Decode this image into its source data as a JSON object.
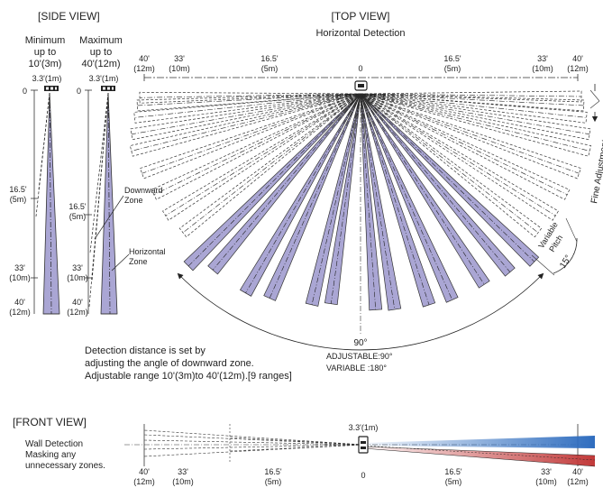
{
  "side_view": {
    "title": "[SIDE VIEW]",
    "minimum": {
      "line1": "Minimum",
      "line2": "up to",
      "line3": "10'(3m)",
      "height": "3.3'(1m)"
    },
    "maximum": {
      "line1": "Maximum",
      "line2": "up to",
      "line3": "40'(12m)",
      "height": "3.3'(1m)"
    },
    "zero": "0",
    "d16_ft": "16.5'",
    "d16_m": "(5m)",
    "d33_ft": "33'",
    "d33_m": "(10m)",
    "d40_ft": "40'",
    "d40_m": "(12m)",
    "downward_zone": [
      "Downward",
      "Zone"
    ],
    "horizontal_zone": [
      "Horizontal",
      "Zone"
    ]
  },
  "top_view": {
    "title": "[TOP VIEW]",
    "subtitle": "Horizontal Detection",
    "scale": [
      {
        "ft": "40'",
        "m": "(12m)"
      },
      {
        "ft": "33'",
        "m": "(10m)"
      },
      {
        "ft": "16.5'",
        "m": "(5m)"
      },
      {
        "ft": "0",
        "m": ""
      },
      {
        "ft": "16.5'",
        "m": "(5m)"
      },
      {
        "ft": "33'",
        "m": "(10m)"
      },
      {
        "ft": "40'",
        "m": "(12m)"
      }
    ],
    "fine_adjustment": "Fine Adjustment",
    "variable_pitch": [
      "Variable",
      "Pitch"
    ],
    "pitch_angle": "15°",
    "coverage_angle": "90°",
    "adjustable": "ADJUSTABLE:90°",
    "variable": "VARIABLE :180°"
  },
  "note": {
    "line1": "Detection distance is set by",
    "line2": "adjusting the angle of downward zone.",
    "line3": "Adjustable range 10'(3m)to 40'(12m).[9 ranges]"
  },
  "front_view": {
    "title": "[FRONT VIEW]",
    "wall1": "Wall Detection",
    "wall2": "Masking  any",
    "wall3": "unnecessary zones.",
    "height": "3.3'(1m)",
    "scale": [
      {
        "ft": "40'",
        "m": "(12m)"
      },
      {
        "ft": "33'",
        "m": "(10m)"
      },
      {
        "ft": "16.5'",
        "m": "(5m)"
      },
      {
        "ft": "0",
        "m": ""
      },
      {
        "ft": "16.5'",
        "m": "(5m)"
      },
      {
        "ft": "33'",
        "m": "(10m)"
      },
      {
        "ft": "40'",
        "m": "(12m)"
      }
    ]
  },
  "colors": {
    "zone_fill": "#aaa6d4",
    "zone_stroke": "#333333",
    "blue_zone": "#2f6dbf",
    "red_zone": "#c23a3a"
  }
}
